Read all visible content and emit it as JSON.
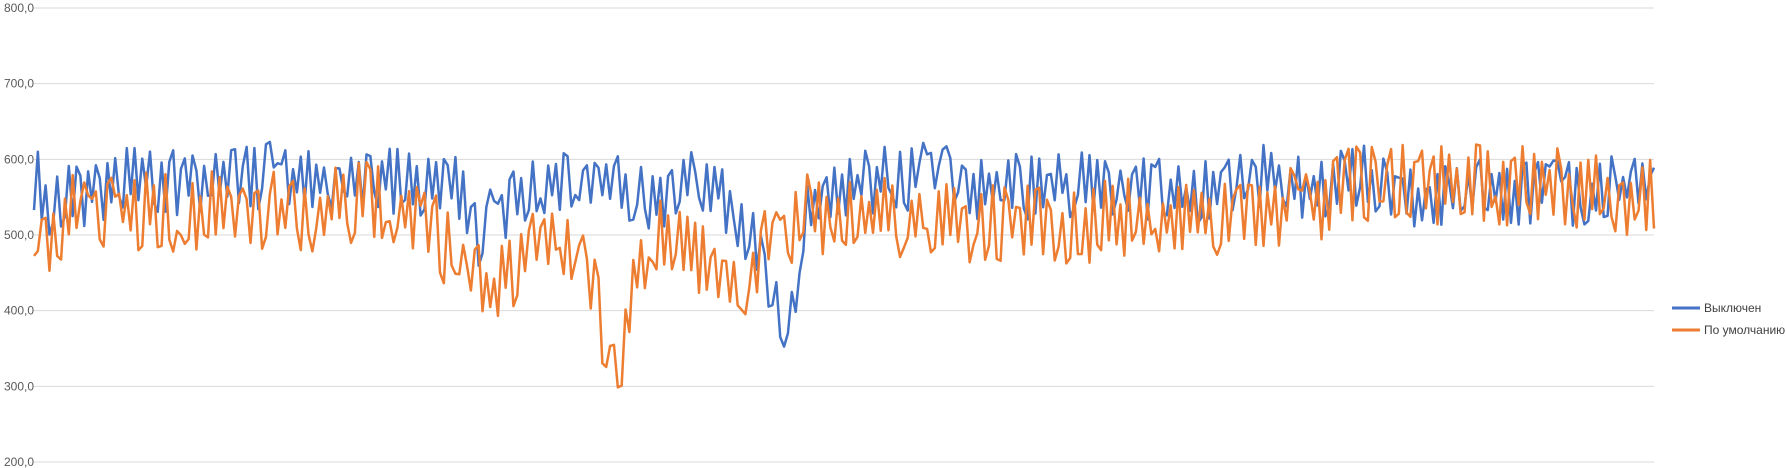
{
  "chart_data": {
    "type": "line",
    "title": "",
    "xlabel": "",
    "ylabel": "",
    "ylim": [
      200,
      800
    ],
    "y_ticks": [
      {
        "value": 800,
        "label": "800,0"
      },
      {
        "value": 700,
        "label": "700,0"
      },
      {
        "value": 600,
        "label": "600,0"
      },
      {
        "value": 500,
        "label": "500,0"
      },
      {
        "value": 400,
        "label": "400,0"
      },
      {
        "value": 300,
        "label": "300,0"
      },
      {
        "value": 200,
        "label": "200,0"
      }
    ],
    "grid": true,
    "legend_position": "right",
    "x_count": 420,
    "series": [
      {
        "name": "Выключен",
        "color": "#4472C4",
        "anchors": [
          [
            0,
            575
          ],
          [
            4,
            545
          ],
          [
            16,
            560
          ],
          [
            28,
            575
          ],
          [
            40,
            565
          ],
          [
            50,
            575
          ],
          [
            60,
            580
          ],
          [
            70,
            565
          ],
          [
            80,
            575
          ],
          [
            90,
            575
          ],
          [
            100,
            560
          ],
          [
            110,
            560
          ],
          [
            115,
            500
          ],
          [
            120,
            530
          ],
          [
            130,
            565
          ],
          [
            140,
            570
          ],
          [
            150,
            565
          ],
          [
            160,
            550
          ],
          [
            175,
            575
          ],
          [
            185,
            505
          ],
          [
            188,
            470
          ],
          [
            192,
            410
          ],
          [
            195,
            358
          ],
          [
            200,
            540
          ],
          [
            215,
            570
          ],
          [
            230,
            580
          ],
          [
            245,
            565
          ],
          [
            260,
            565
          ],
          [
            275,
            570
          ],
          [
            290,
            560
          ],
          [
            300,
            545
          ],
          [
            310,
            575
          ],
          [
            320,
            575
          ],
          [
            330,
            560
          ],
          [
            340,
            580
          ],
          [
            350,
            565
          ],
          [
            360,
            545
          ],
          [
            370,
            560
          ],
          [
            380,
            555
          ],
          [
            390,
            555
          ],
          [
            400,
            555
          ],
          [
            410,
            560
          ],
          [
            420,
            565
          ]
        ],
        "amplitude": 45,
        "seed": 7
      },
      {
        "name": "По умолчанию",
        "color": "#ED7D31",
        "anchors": [
          [
            0,
            505
          ],
          [
            4,
            480
          ],
          [
            10,
            530
          ],
          [
            20,
            535
          ],
          [
            40,
            530
          ],
          [
            50,
            530
          ],
          [
            60,
            535
          ],
          [
            70,
            530
          ],
          [
            80,
            540
          ],
          [
            90,
            545
          ],
          [
            100,
            515
          ],
          [
            108,
            480
          ],
          [
            112,
            445
          ],
          [
            118,
            420
          ],
          [
            126,
            470
          ],
          [
            135,
            500
          ],
          [
            140,
            485
          ],
          [
            145,
            420
          ],
          [
            150,
            300
          ],
          [
            152,
            345
          ],
          [
            155,
            450
          ],
          [
            160,
            500
          ],
          [
            168,
            495
          ],
          [
            175,
            450
          ],
          [
            180,
            435
          ],
          [
            185,
            450
          ],
          [
            190,
            495
          ],
          [
            200,
            530
          ],
          [
            210,
            520
          ],
          [
            230,
            525
          ],
          [
            250,
            515
          ],
          [
            270,
            515
          ],
          [
            290,
            525
          ],
          [
            300,
            520
          ],
          [
            310,
            520
          ],
          [
            320,
            530
          ],
          [
            330,
            540
          ],
          [
            340,
            570
          ],
          [
            350,
            565
          ],
          [
            360,
            570
          ],
          [
            370,
            565
          ],
          [
            380,
            565
          ],
          [
            390,
            570
          ],
          [
            400,
            560
          ],
          [
            410,
            550
          ],
          [
            420,
            555
          ]
        ],
        "amplitude": 55,
        "seed": 13
      }
    ]
  }
}
